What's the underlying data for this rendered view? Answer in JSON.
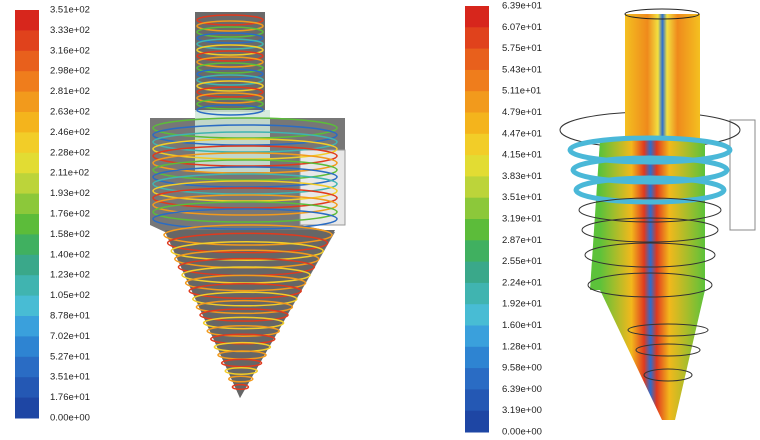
{
  "panels": [
    {
      "colorbar": {
        "labels": [
          "3.51e+02",
          "3.33e+02",
          "3.16e+02",
          "2.98e+02",
          "2.81e+02",
          "2.63e+02",
          "2.46e+02",
          "2.28e+02",
          "2.11e+02",
          "1.93e+02",
          "1.76e+02",
          "1.58e+02",
          "1.40e+02",
          "1.23e+02",
          "1.05e+02",
          "8.78e+01",
          "7.02e+01",
          "5.27e+01",
          "3.51e+01",
          "1.76e+01",
          "0.00e+00"
        ]
      }
    },
    {
      "colorbar": {
        "labels": [
          "6.39e+01",
          "6.07e+01",
          "5.75e+01",
          "5.43e+01",
          "5.11e+01",
          "4.79e+01",
          "4.47e+01",
          "4.15e+01",
          "3.83e+01",
          "3.51e+01",
          "3.19e+01",
          "2.87e+01",
          "2.55e+01",
          "2.24e+01",
          "1.92e+01",
          "1.60e+01",
          "1.28e+01",
          "9.58e+00",
          "6.39e+00",
          "3.19e+00",
          "0.00e+00"
        ]
      }
    }
  ]
}
